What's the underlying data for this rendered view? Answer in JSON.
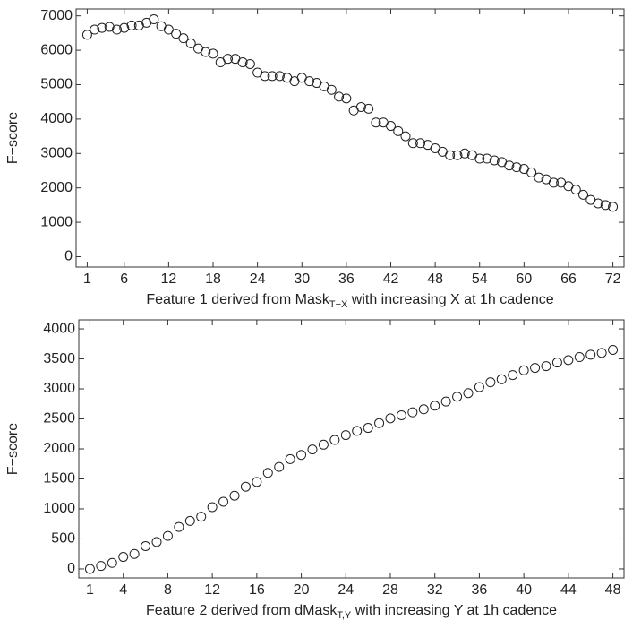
{
  "chart_data": [
    {
      "type": "scatter",
      "ylabel": "F−score",
      "xlabel": {
        "text": "Feature 1 derived from Mask",
        "subscript": "T−X",
        "text_after": " with increasing X at 1h cadence"
      },
      "x": [
        1,
        2,
        3,
        4,
        5,
        6,
        7,
        8,
        9,
        10,
        11,
        12,
        13,
        14,
        15,
        16,
        17,
        18,
        19,
        20,
        21,
        22,
        23,
        24,
        25,
        26,
        27,
        28,
        29,
        30,
        31,
        32,
        33,
        34,
        35,
        36,
        37,
        38,
        39,
        40,
        41,
        42,
        43,
        44,
        45,
        46,
        47,
        48,
        49,
        50,
        51,
        52,
        53,
        54,
        55,
        56,
        57,
        58,
        59,
        60,
        61,
        62,
        63,
        64,
        65,
        66,
        67,
        68,
        69,
        70,
        71,
        72
      ],
      "y": [
        6450,
        6600,
        6650,
        6680,
        6600,
        6650,
        6720,
        6720,
        6800,
        6900,
        6700,
        6600,
        6480,
        6350,
        6200,
        6050,
        5950,
        5900,
        5650,
        5750,
        5750,
        5650,
        5600,
        5350,
        5250,
        5250,
        5250,
        5200,
        5100,
        5200,
        5100,
        5050,
        4950,
        4850,
        4650,
        4600,
        4250,
        4350,
        4300,
        3900,
        3900,
        3800,
        3650,
        3500,
        3300,
        3300,
        3250,
        3150,
        3050,
        2950,
        2950,
        3000,
        2950,
        2850,
        2850,
        2800,
        2750,
        2650,
        2600,
        2550,
        2450,
        2300,
        2250,
        2150,
        2150,
        2050,
        1950,
        1800,
        1650,
        1550,
        1500,
        1450
      ],
      "color": "#222222",
      "xlim": [
        -0.5,
        73.5
      ],
      "xticks": [
        1,
        6,
        12,
        18,
        24,
        30,
        36,
        42,
        48,
        54,
        60,
        66,
        72
      ],
      "ylim": [
        -300,
        7200
      ],
      "yticks": [
        0,
        1000,
        2000,
        3000,
        4000,
        5000,
        6000,
        7000
      ]
    },
    {
      "type": "scatter",
      "ylabel": "F−score",
      "xlabel": {
        "text": "Feature 2 derived from dMask",
        "subscript": "T,Y",
        "text_after": " with increasing Y at 1h cadence"
      },
      "x": [
        1,
        2,
        3,
        4,
        5,
        6,
        7,
        8,
        9,
        10,
        11,
        12,
        13,
        14,
        15,
        16,
        17,
        18,
        19,
        20,
        21,
        22,
        23,
        24,
        25,
        26,
        27,
        28,
        29,
        30,
        31,
        32,
        33,
        34,
        35,
        36,
        37,
        38,
        39,
        40,
        41,
        42,
        43,
        44,
        45,
        46,
        47,
        48
      ],
      "y": [
        0,
        50,
        100,
        200,
        250,
        380,
        450,
        550,
        700,
        800,
        870,
        1030,
        1120,
        1220,
        1370,
        1450,
        1600,
        1700,
        1830,
        1900,
        1990,
        2070,
        2150,
        2230,
        2300,
        2350,
        2430,
        2510,
        2560,
        2610,
        2660,
        2720,
        2790,
        2870,
        2930,
        3030,
        3110,
        3160,
        3230,
        3310,
        3350,
        3380,
        3440,
        3480,
        3530,
        3570,
        3600,
        3650
      ],
      "color": "#222222",
      "xlim": [
        0,
        49
      ],
      "xticks": [
        1,
        4,
        8,
        12,
        16,
        20,
        24,
        28,
        32,
        36,
        40,
        44,
        48
      ],
      "ylim": [
        -150,
        4150
      ],
      "yticks": [
        0,
        500,
        1000,
        1500,
        2000,
        2500,
        3000,
        3500,
        4000
      ]
    }
  ]
}
